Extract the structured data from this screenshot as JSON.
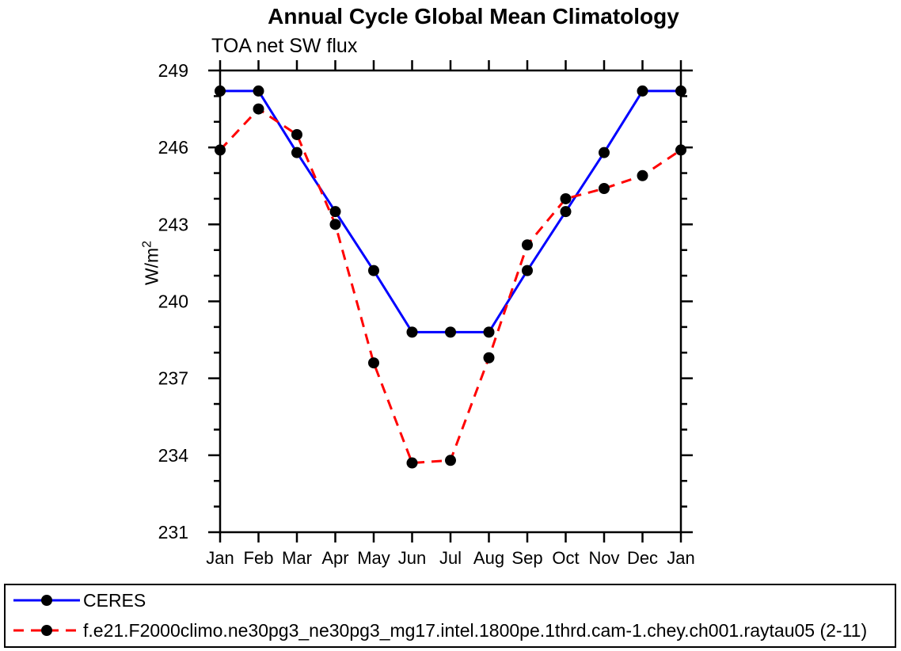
{
  "title": "Annual Cycle Global Mean Climatology",
  "subtitle": "TOA net SW flux",
  "chart_data": {
    "type": "line",
    "x_categories": [
      "Jan",
      "Feb",
      "Mar",
      "Apr",
      "May",
      "Jun",
      "Jul",
      "Aug",
      "Sep",
      "Oct",
      "Nov",
      "Dec",
      "Jan"
    ],
    "xlabel": "",
    "ylabel": "W/m²",
    "ylabel_base": "W/m",
    "ylabel_sup": "2",
    "ylim": [
      231,
      249
    ],
    "ytick_major": [
      231,
      234,
      237,
      240,
      243,
      246,
      249
    ],
    "ytick_minor_interval": 1,
    "grid": false,
    "legend_position": "bottom full-width box",
    "frame_color": "#000000",
    "marker_color": "#000000",
    "series": [
      {
        "name": "CERES",
        "color": "#0000ff",
        "line_style": "solid",
        "marker": "filled-circle",
        "values": [
          248.2,
          248.2,
          245.8,
          243.5,
          241.2,
          238.8,
          238.8,
          238.8,
          241.2,
          243.5,
          245.8,
          248.2,
          248.2
        ]
      },
      {
        "name": "f.e21.F2000climo.ne30pg3_ne30pg3_mg17.intel.1800pe.1thrd.cam-1.chey.ch001.raytau05 (2-11)",
        "color": "#ff0000",
        "line_style": "dashed",
        "marker": "filled-circle",
        "values": [
          245.9,
          247.5,
          246.5,
          243.0,
          237.6,
          233.7,
          233.8,
          237.8,
          242.2,
          244.0,
          244.4,
          244.9,
          245.9
        ]
      }
    ]
  }
}
